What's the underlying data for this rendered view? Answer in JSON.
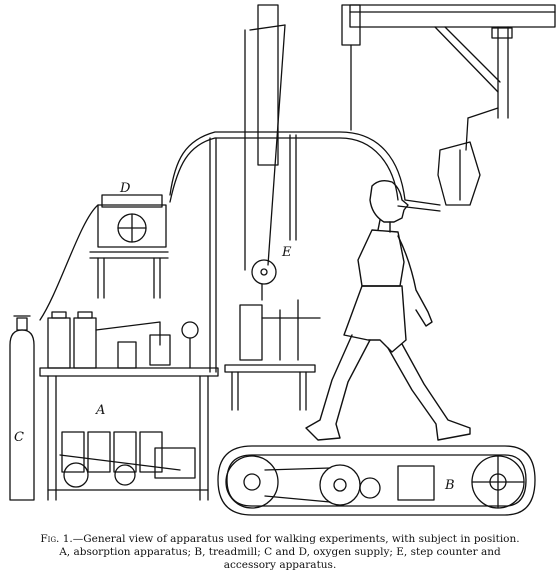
{
  "labels": {
    "a": "A",
    "b": "B",
    "c": "C",
    "d": "D",
    "e": "E"
  },
  "caption": {
    "fig_number": "Fig. 1.",
    "line1_rest": "—General view of apparatus used for walking experiments, with subject in position.",
    "line2": "A, absorption apparatus; B, treadmill; C and D, oxygen supply; E, step counter and",
    "line3": "accessory apparatus."
  }
}
